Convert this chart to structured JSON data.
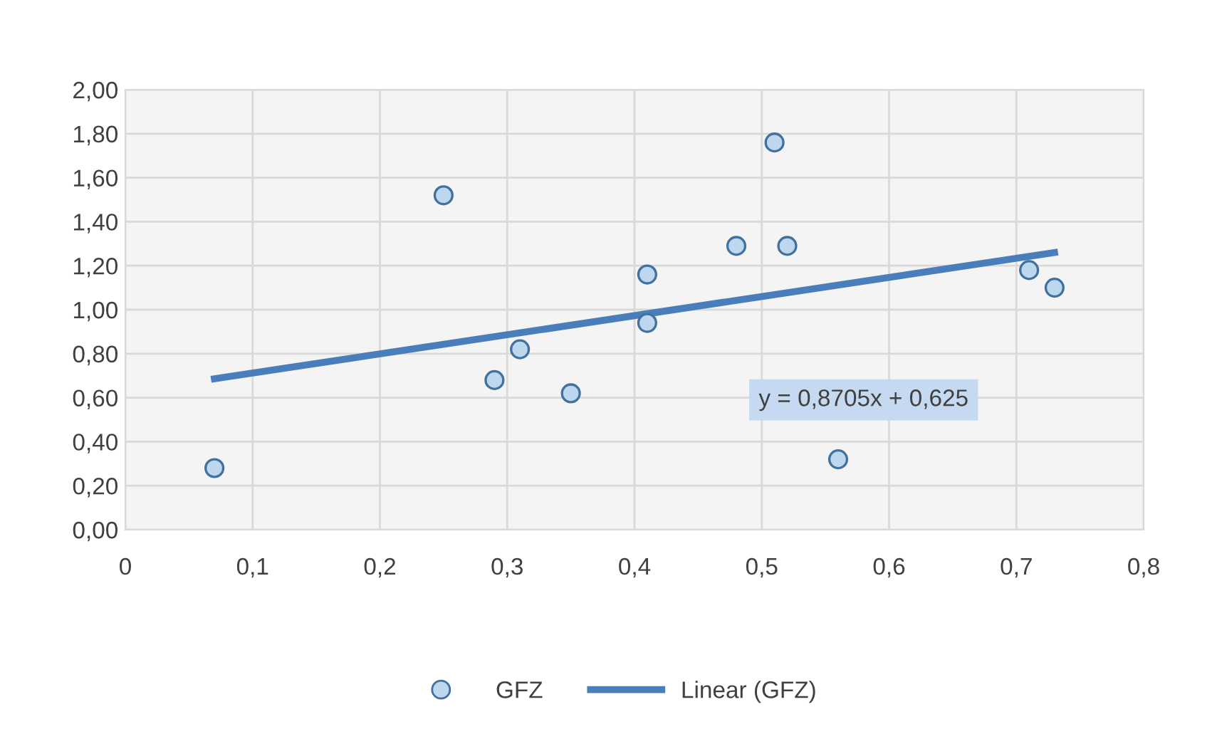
{
  "chart_data": {
    "type": "scatter",
    "series": [
      {
        "name": "GFZ",
        "color": "#bdd7ee",
        "marker": "circle",
        "x": [
          0.07,
          0.25,
          0.29,
          0.31,
          0.35,
          0.41,
          0.41,
          0.48,
          0.51,
          0.52,
          0.56,
          0.71,
          0.73
        ],
        "values": [
          0.28,
          1.52,
          0.68,
          0.82,
          0.62,
          1.16,
          0.94,
          1.29,
          1.76,
          1.29,
          0.32,
          1.18,
          1.1
        ]
      },
      {
        "name": "Linear (GFZ)",
        "type": "line",
        "color": "#4a7ebb",
        "marker": "none",
        "line_style": "solid",
        "x": [
          0.07,
          0.73
        ],
        "values": [
          0.686,
          1.26
        ]
      }
    ],
    "annotations": [
      "y = 0,8705x + 0,625"
    ],
    "xlim": [
      0,
      0.8
    ],
    "xticks": [
      {
        "value": 0,
        "label": "0"
      },
      {
        "value": 0.1,
        "label": "0,1"
      },
      {
        "value": 0.2,
        "label": "0,2"
      },
      {
        "value": 0.3,
        "label": "0,3"
      },
      {
        "value": 0.4,
        "label": "0,4"
      },
      {
        "value": 0.5,
        "label": "0,5"
      },
      {
        "value": 0.6,
        "label": "0,6"
      },
      {
        "value": 0.7,
        "label": "0,7"
      },
      {
        "value": 0.8,
        "label": "0,8"
      }
    ],
    "ylim": [
      0,
      2
    ],
    "yticks": [
      {
        "value": 0,
        "label": "0,00"
      },
      {
        "value": 0.2,
        "label": "0,20"
      },
      {
        "value": 0.4,
        "label": "0,40"
      },
      {
        "value": 0.6,
        "label": "0,60"
      },
      {
        "value": 0.8,
        "label": "0,80"
      },
      {
        "value": 1.0,
        "label": "1,00"
      },
      {
        "value": 1.2,
        "label": "1,20"
      },
      {
        "value": 1.4,
        "label": "1,40"
      },
      {
        "value": 1.6,
        "label": "1,60"
      },
      {
        "value": 1.8,
        "label": "1,80"
      },
      {
        "value": 2.0,
        "label": "2,00"
      }
    ],
    "grid": true,
    "legend": "bottom"
  }
}
